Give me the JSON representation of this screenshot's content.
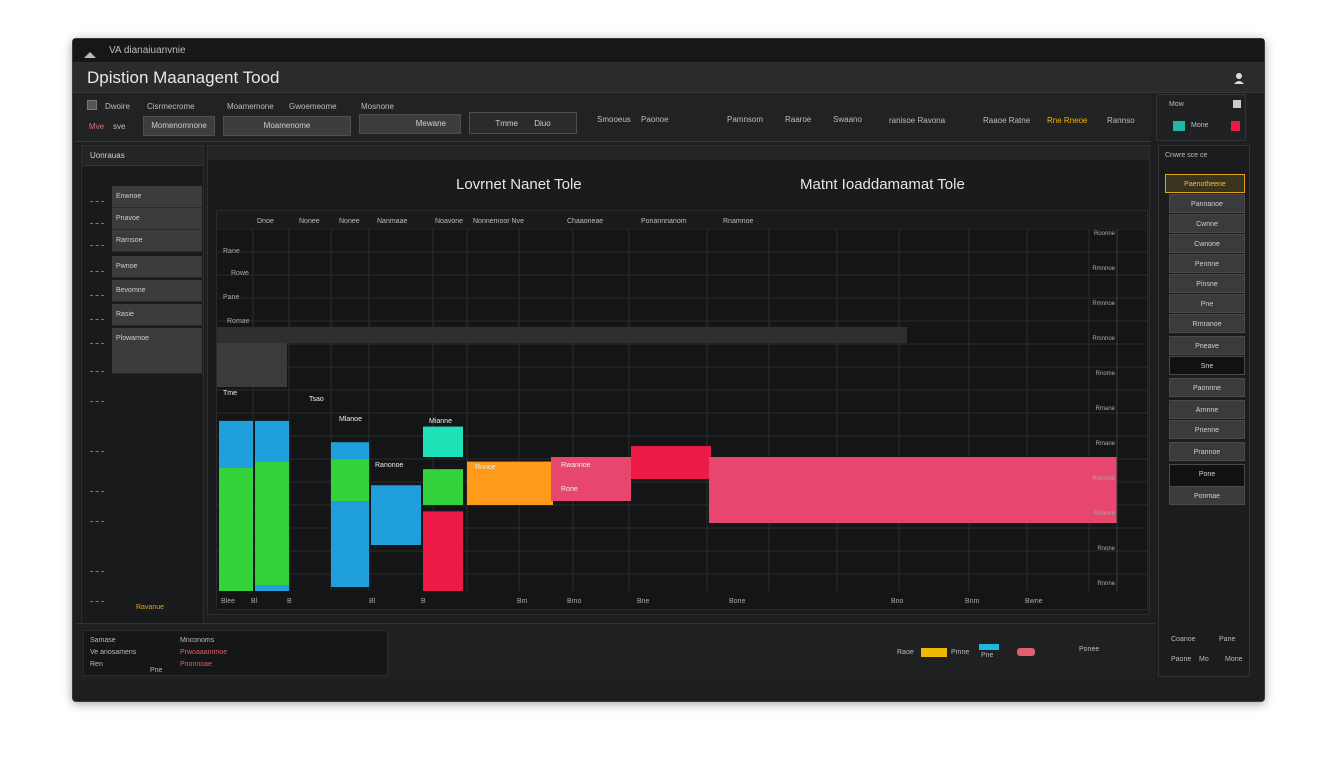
{
  "window": {
    "titlebar_text": "VA dianaiuanvnie",
    "app_title": "Dpistion Maanagent Tood"
  },
  "toolbar": {
    "labels_top": [
      "Dwoire",
      "Cisrmecrome",
      "Moamemone",
      "Gwoemeome",
      "Mosnone"
    ],
    "row2": [
      "Mve",
      "sve",
      "Momenomnone",
      "Moamenome",
      "Mewane"
    ],
    "center_buttons": [
      "Tmme",
      "Tisiro",
      "Diuo"
    ],
    "right_labels": [
      "Smooeus",
      "Paonoe",
      "Pamnsom",
      "Raaroe",
      "Swaano",
      "ranisoe Ravona",
      "Raaoe Ratne",
      "Rne Rneoe",
      "Rannso"
    ]
  },
  "right_top": {
    "label1": "Mow",
    "label2": "Mone"
  },
  "sidebar": {
    "header": "Uonrauas",
    "items": [
      "Enwnoe",
      "Pnavoe",
      "Rarnsoe",
      "Pwnoe",
      "Bevomne",
      "Rasie",
      "Plowarnoe"
    ],
    "footer": "Ravanue"
  },
  "main": {
    "title_left": "Lovrnet Nanet Tole",
    "title_right": "Matnt Ioaddamamat Tole"
  },
  "chart_data": {
    "type": "bar",
    "column_headers": [
      "Dnoe",
      "Nonee",
      "Nonee",
      "Nanmaae",
      "Noavone",
      "Nonnemoor Nve",
      "Chaaoneae",
      "Ponannnanom",
      "Rnamnoe"
    ],
    "row_labels": [
      "Rane",
      "Rowe",
      "Pane",
      "Romae"
    ],
    "bar_labels": [
      "Tme",
      "Tsao",
      "Mlanoe",
      "Ranonoe",
      "Mianne",
      "Rnnoe",
      "Rwannoe",
      "Rone"
    ],
    "x_tick_labels": [
      "Blee",
      "Bl",
      "B",
      "Bl",
      "B",
      "Bm",
      "Bmo",
      "Bne",
      "Bone",
      "Bno",
      "Bnm",
      "Bwne"
    ],
    "right_axis_labels": [
      "Roonne",
      "Rmnnoe",
      "Rmnnoe",
      "Rmnnoe",
      "Rnome",
      "Rmane",
      "Rmane",
      "Ronome",
      "Rnomm",
      "Rnone",
      "Rnnne"
    ],
    "series": [
      {
        "color": "#1f9fdc",
        "values": [
          0.47,
          0.47,
          0.4,
          0.33
        ]
      },
      {
        "color": "#34d33c",
        "values": [
          0.34,
          0.34,
          0.33,
          0.33
        ]
      },
      {
        "color": "#1fe3b8",
        "values": [
          0.42
        ]
      },
      {
        "color": "#ff9a1a",
        "values": [
          0.12,
          0.12
        ]
      },
      {
        "color": "#ee1a46",
        "values": [
          0.22,
          0.13,
          0.16
        ]
      }
    ]
  },
  "right_panel": {
    "title": "Cnwre sce ce",
    "items": [
      "Paenotheene",
      "Pannanoe",
      "Cwnne",
      "Cwnone",
      "Pennne",
      "Pinsne",
      "Pne",
      "Rrnranoe",
      "Pneave",
      "Sne",
      "Paonnne",
      "Arnnne",
      "Pnenne",
      "Prannoe",
      "Pone",
      "Ponmae"
    ],
    "footer_labels": [
      "Coanoe",
      "Pane",
      "Paone",
      "Mo",
      "Mone"
    ]
  },
  "bottom": {
    "left_labels": [
      "Samase",
      "Ve anosamens",
      "Ren",
      "Pne"
    ],
    "left_links": [
      "Mnconoms",
      "Prwoaaannnoe",
      "Pnonnoae"
    ],
    "right_labels": [
      "Raoe",
      "Pmne",
      "Pne",
      "Ponee"
    ]
  },
  "colors": {
    "blue": "#1f9fdc",
    "green": "#34d33c",
    "teal": "#1fe3b8",
    "orange": "#ff9a1a",
    "red": "#ee1a46",
    "pink": "#e7476e",
    "yellow": "#f0b800"
  },
  "icons": {
    "user": "user-icon",
    "sidebar": "list-icon"
  }
}
